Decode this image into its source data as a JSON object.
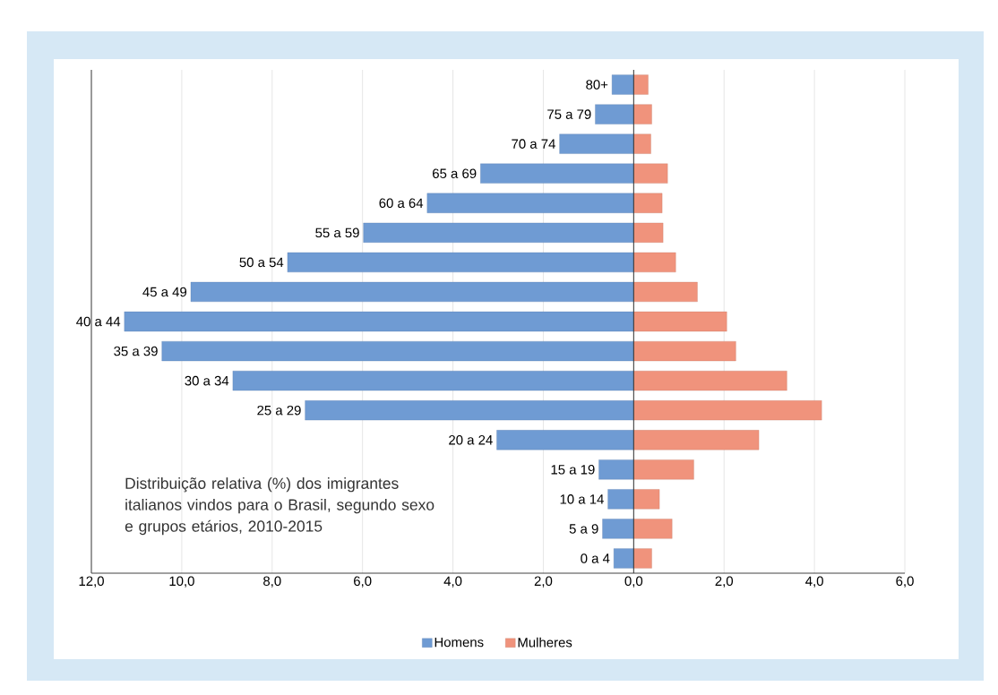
{
  "chart_data": {
    "type": "bar",
    "orientation": "horizontal",
    "title": "Distribuição relativa (%) dos imigrantes italianos vindos para o Brasil, segundo sexo e grupos etários, 2010-2015",
    "categories": [
      "80+",
      "75 a 79",
      "70 a 74",
      "65 a 69",
      "60 a 64",
      "55 a 59",
      "50 a 54",
      "45 a 49",
      "40 a 44",
      "35 a 39",
      "30 a 34",
      "25 a 29",
      "20 a 24",
      "15 a 19",
      "10 a 14",
      "5 a 9",
      "0 a 4"
    ],
    "series": [
      {
        "name": "Homens",
        "color": "#6f9bd3",
        "values": [
          -0.48,
          -0.85,
          -1.64,
          -3.39,
          -4.57,
          -5.98,
          -7.66,
          -9.8,
          -11.27,
          -10.44,
          -8.87,
          -7.27,
          -3.03,
          -0.77,
          -0.57,
          -0.69,
          -0.44
        ]
      },
      {
        "name": "Mulheres",
        "color": "#f0937c",
        "values": [
          0.32,
          0.4,
          0.38,
          0.75,
          0.63,
          0.65,
          0.93,
          1.41,
          2.06,
          2.26,
          3.39,
          4.16,
          2.77,
          1.33,
          0.57,
          0.85,
          0.4
        ]
      }
    ],
    "xlim": [
      -12,
      6
    ],
    "xticks": [
      {
        "value": -12,
        "label": "12,0"
      },
      {
        "value": -10,
        "label": "10,0"
      },
      {
        "value": -8,
        "label": "8,0"
      },
      {
        "value": -6,
        "label": "6,0"
      },
      {
        "value": -4,
        "label": "4,0"
      },
      {
        "value": -2,
        "label": "2,0"
      },
      {
        "value": 0,
        "label": "0,0"
      },
      {
        "value": 2,
        "label": "2,0"
      },
      {
        "value": 4,
        "label": "4,0"
      },
      {
        "value": 6,
        "label": "6,0"
      }
    ],
    "grid": "x",
    "legend": "bottom",
    "stacked": true
  }
}
